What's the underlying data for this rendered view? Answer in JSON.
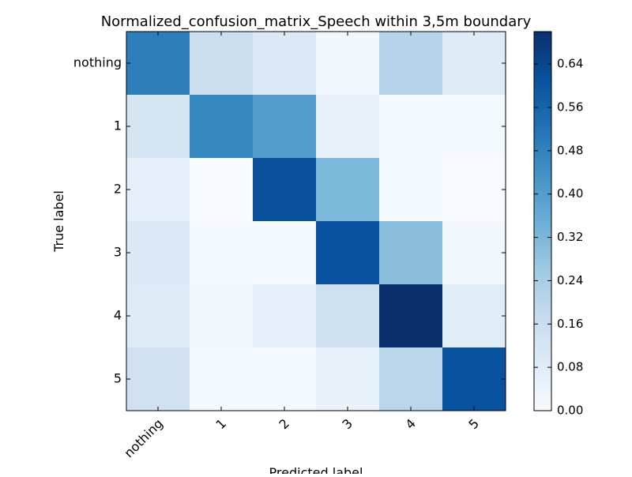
{
  "chart_data": {
    "type": "heatmap",
    "title": "Normalized_confusion_matrix_Speech within 3,5m boundary",
    "xlabel": "Predicted label",
    "ylabel": "True label",
    "x_categories": [
      "nothing",
      "1",
      "2",
      "3",
      "4",
      "5"
    ],
    "y_categories": [
      "nothing",
      "1",
      "2",
      "3",
      "4",
      "5"
    ],
    "values": [
      [
        0.49,
        0.16,
        0.1,
        0.02,
        0.21,
        0.09
      ],
      [
        0.12,
        0.46,
        0.4,
        0.05,
        0.01,
        0.01
      ],
      [
        0.06,
        0.0,
        0.62,
        0.32,
        0.01,
        0.0
      ],
      [
        0.1,
        0.01,
        0.01,
        0.61,
        0.3,
        0.02
      ],
      [
        0.09,
        0.02,
        0.06,
        0.15,
        0.7,
        0.08
      ],
      [
        0.14,
        0.01,
        0.01,
        0.05,
        0.2,
        0.61
      ]
    ],
    "colormap": "Blues",
    "colorbar": {
      "range": [
        0.0,
        0.7
      ],
      "ticks": [
        "0.00",
        "0.08",
        "0.16",
        "0.24",
        "0.32",
        "0.40",
        "0.48",
        "0.56",
        "0.64"
      ]
    },
    "grid": false
  }
}
